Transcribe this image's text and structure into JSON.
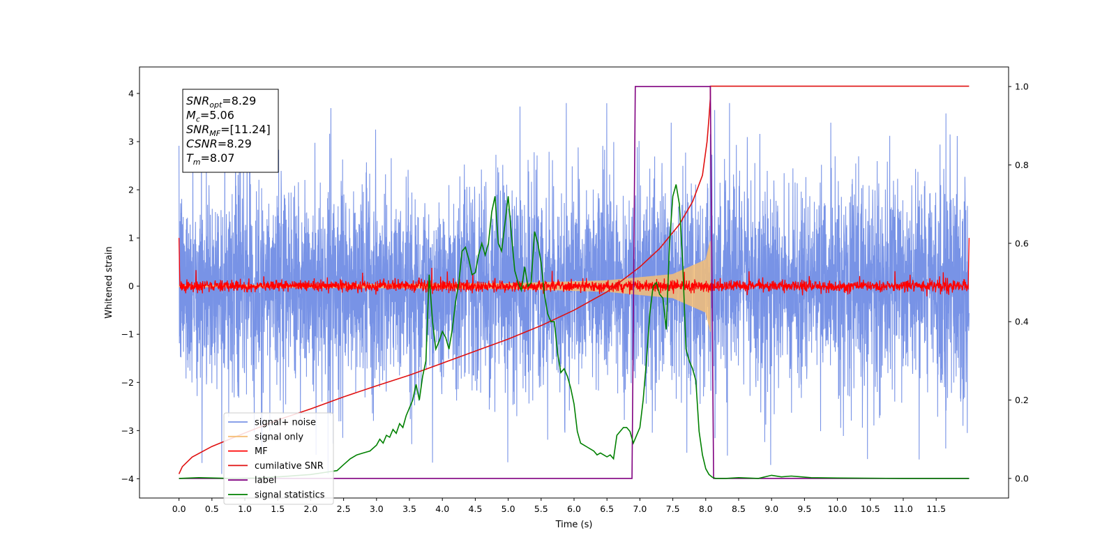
{
  "chart_data": {
    "type": "line",
    "xlabel": "Time (s)",
    "ylabel": "Whitened strain",
    "xlim": [
      -0.6,
      12.6
    ],
    "ylim": [
      -4.4,
      4.55
    ],
    "y2lim": [
      -0.05,
      1.05
    ],
    "x_ticks": [
      "0.0",
      "0.5",
      "1.0",
      "1.5",
      "2.0",
      "2.5",
      "3.0",
      "3.5",
      "4.0",
      "4.5",
      "5.0",
      "5.5",
      "6.0",
      "6.5",
      "7.0",
      "7.5",
      "8.0",
      "8.5",
      "9.0",
      "9.5",
      "10.0",
      "10.5",
      "11.0",
      "11.5"
    ],
    "y_ticks": [
      -4,
      -3,
      -2,
      -1,
      0,
      1,
      2,
      3,
      4
    ],
    "y_tick_labels": [
      "−4",
      "−3",
      "−2",
      "−1",
      "0",
      "1",
      "2",
      "3",
      "4"
    ],
    "y2_ticks": [
      "0.0",
      "0.2",
      "0.4",
      "0.6",
      "0.8",
      "1.0"
    ],
    "grid": false,
    "legend_position": "lower-left",
    "annotation": {
      "lines": [
        {
          "sym": "SNR",
          "sub": "opt",
          "value": "=8.29"
        },
        {
          "sym": "M",
          "sub": "c",
          "value": "=5.06"
        },
        {
          "sym": "SNR",
          "sub": "MF",
          "value": "=[11.24]"
        },
        {
          "sym": "CSNR",
          "sub": "",
          "value": "=8.29"
        },
        {
          "sym": "T",
          "sub": "m",
          "value": "=8.07"
        }
      ]
    },
    "series": [
      {
        "name": "signal+ noise",
        "color": "#7893e6",
        "axis": "left",
        "style": "noise",
        "x_range": [
          0.0,
          12.0
        ],
        "std": 1.05,
        "spike_max": 3.8
      },
      {
        "name": "signal only",
        "color": "#f5be75",
        "axis": "left",
        "style": "chirp",
        "x_range": [
          0.0,
          8.07
        ],
        "envelope": [
          [
            0.0,
            0.02
          ],
          [
            5.0,
            0.06
          ],
          [
            6.5,
            0.12
          ],
          [
            7.5,
            0.25
          ],
          [
            8.0,
            0.55
          ],
          [
            8.07,
            0.95
          ]
        ]
      },
      {
        "name": "MF",
        "color": "#ff0000",
        "axis": "left",
        "style": "mf",
        "x_range": [
          0.0,
          12.0
        ],
        "std": 0.06,
        "edge_value": 1.0
      },
      {
        "name": "cumilative SNR",
        "color": "#e01010",
        "axis": "left",
        "style": "line",
        "x": [
          0.0,
          0.05,
          0.2,
          0.5,
          1.0,
          1.5,
          2.0,
          2.5,
          3.0,
          3.5,
          4.0,
          4.5,
          5.0,
          5.5,
          6.0,
          6.5,
          7.0,
          7.3,
          7.6,
          7.8,
          7.95,
          8.02,
          8.05,
          8.07,
          8.07,
          12.0
        ],
        "y": [
          -3.9,
          -3.75,
          -3.55,
          -3.33,
          -3.05,
          -2.78,
          -2.55,
          -2.3,
          -2.07,
          -1.85,
          -1.6,
          -1.35,
          -1.1,
          -0.82,
          -0.5,
          -0.12,
          0.4,
          0.78,
          1.28,
          1.75,
          2.3,
          3.0,
          3.5,
          3.9,
          4.15,
          4.15
        ]
      },
      {
        "name": "label",
        "color": "#800080",
        "axis": "right",
        "style": "line",
        "x": [
          0.0,
          6.88,
          6.93,
          8.07,
          8.12,
          12.0
        ],
        "y": [
          0.0,
          0.0,
          1.0,
          1.0,
          0.0,
          0.0
        ]
      },
      {
        "name": "signal statistics",
        "color": "#008000",
        "axis": "right",
        "style": "line",
        "x": [
          0.0,
          0.3,
          0.8,
          1.2,
          1.6,
          2.0,
          2.2,
          2.4,
          2.5,
          2.6,
          2.7,
          2.8,
          2.9,
          3.0,
          3.05,
          3.1,
          3.15,
          3.2,
          3.25,
          3.3,
          3.35,
          3.4,
          3.45,
          3.5,
          3.55,
          3.6,
          3.65,
          3.7,
          3.75,
          3.8,
          3.85,
          3.9,
          3.95,
          4.0,
          4.05,
          4.1,
          4.15,
          4.2,
          4.25,
          4.3,
          4.35,
          4.4,
          4.45,
          4.5,
          4.55,
          4.6,
          4.65,
          4.7,
          4.75,
          4.8,
          4.85,
          4.9,
          4.95,
          5.0,
          5.05,
          5.1,
          5.15,
          5.2,
          5.25,
          5.3,
          5.35,
          5.4,
          5.45,
          5.5,
          5.55,
          5.6,
          5.65,
          5.7,
          5.75,
          5.8,
          5.85,
          5.9,
          5.95,
          6.0,
          6.05,
          6.1,
          6.15,
          6.2,
          6.25,
          6.3,
          6.35,
          6.4,
          6.45,
          6.5,
          6.55,
          6.6,
          6.65,
          6.7,
          6.75,
          6.8,
          6.85,
          6.9,
          6.95,
          7.0,
          7.05,
          7.1,
          7.15,
          7.2,
          7.25,
          7.3,
          7.35,
          7.4,
          7.45,
          7.5,
          7.55,
          7.6,
          7.65,
          7.7,
          7.75,
          7.8,
          7.85,
          7.9,
          7.95,
          8.0,
          8.05,
          8.1,
          8.15,
          8.2,
          8.3,
          8.5,
          8.8,
          9.0,
          9.15,
          9.3,
          9.6,
          10.0,
          11.0,
          12.0
        ],
        "y": [
          0.0,
          0.002,
          0.0,
          0.001,
          0.005,
          0.01,
          0.015,
          0.02,
          0.035,
          0.05,
          0.06,
          0.065,
          0.07,
          0.085,
          0.1,
          0.09,
          0.11,
          0.105,
          0.125,
          0.115,
          0.14,
          0.13,
          0.16,
          0.18,
          0.2,
          0.24,
          0.2,
          0.26,
          0.3,
          0.52,
          0.4,
          0.33,
          0.35,
          0.375,
          0.36,
          0.33,
          0.38,
          0.45,
          0.5,
          0.58,
          0.59,
          0.56,
          0.52,
          0.525,
          0.57,
          0.6,
          0.57,
          0.6,
          0.68,
          0.72,
          0.6,
          0.58,
          0.65,
          0.72,
          0.62,
          0.53,
          0.5,
          0.48,
          0.54,
          0.49,
          0.5,
          0.63,
          0.6,
          0.55,
          0.47,
          0.42,
          0.4,
          0.4,
          0.32,
          0.27,
          0.28,
          0.26,
          0.23,
          0.19,
          0.12,
          0.09,
          0.085,
          0.08,
          0.075,
          0.07,
          0.06,
          0.065,
          0.06,
          0.055,
          0.06,
          0.05,
          0.11,
          0.12,
          0.13,
          0.13,
          0.12,
          0.09,
          0.11,
          0.13,
          0.2,
          0.3,
          0.42,
          0.49,
          0.5,
          0.47,
          0.46,
          0.38,
          0.6,
          0.72,
          0.75,
          0.7,
          0.55,
          0.33,
          0.3,
          0.28,
          0.25,
          0.12,
          0.06,
          0.025,
          0.01,
          0.003,
          0.0,
          0.0,
          0.0,
          0.002,
          0.0,
          0.008,
          0.004,
          0.006,
          0.002,
          0.001,
          0.0,
          0.0
        ]
      }
    ]
  }
}
